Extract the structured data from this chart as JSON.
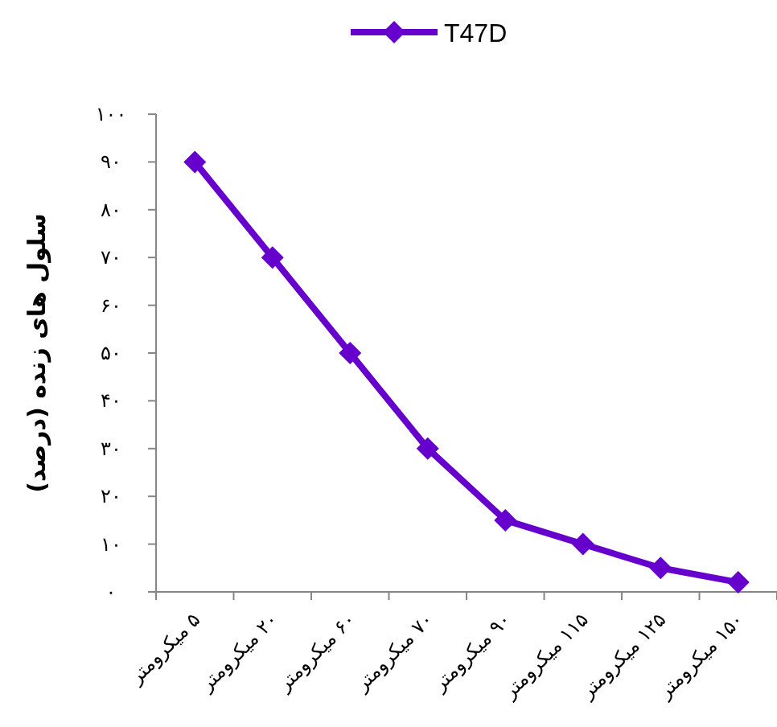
{
  "chart_data": {
    "type": "line",
    "ylabel": "سلول های زنده (درصد)",
    "categories": [
      "۵ میکرومتر",
      "۲۰ میکرومتر",
      "۶۰ میکرومتر",
      "۷۰ میکرومتر",
      "۹۰ میکرومتر",
      "۱۱۵ میکرومتر",
      "۱۲۵ میکرومتر",
      "۱۵۰ میکرومتر"
    ],
    "series": [
      {
        "name": "T47D",
        "color": "#6600cc",
        "values": [
          90,
          70,
          50,
          30,
          15,
          10,
          5,
          2
        ]
      }
    ],
    "ylim": [
      0,
      100
    ],
    "yticks": [
      {
        "value": 0,
        "label": "۰"
      },
      {
        "value": 10,
        "label": "۱۰"
      },
      {
        "value": 20,
        "label": "۲۰"
      },
      {
        "value": 30,
        "label": "۳۰"
      },
      {
        "value": 40,
        "label": "۴۰"
      },
      {
        "value": 50,
        "label": "۵۰"
      },
      {
        "value": 60,
        "label": "۶۰"
      },
      {
        "value": 70,
        "label": "۷۰"
      },
      {
        "value": 80,
        "label": "۸۰"
      },
      {
        "value": 90,
        "label": "۹۰"
      },
      {
        "value": 100,
        "label": "۱۰۰"
      }
    ],
    "grid": false,
    "legend": "top",
    "marker": "diamond",
    "line_style": "solid"
  }
}
